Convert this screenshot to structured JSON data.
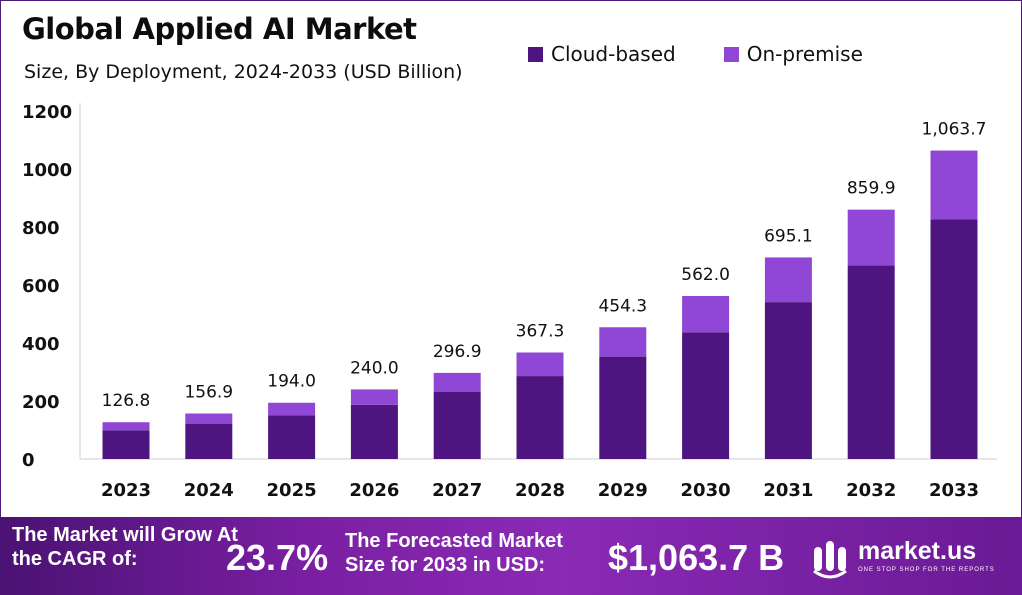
{
  "chart_data": {
    "type": "bar",
    "stacked": true,
    "title": "Global Applied AI Market",
    "subtitle": "Size, By Deployment, 2024-2033 (USD Billion)",
    "categories": [
      "2023",
      "2024",
      "2025",
      "2026",
      "2027",
      "2028",
      "2029",
      "2030",
      "2031",
      "2032",
      "2033"
    ],
    "series": [
      {
        "name": "Cloud-based",
        "color": "#4e1580",
        "values": [
          99,
          122,
          151,
          187,
          231,
          286,
          353,
          437,
          541,
          668,
          826
        ]
      },
      {
        "name": "On-premise",
        "color": "#9147d6",
        "values": [
          27.8,
          34.9,
          43.0,
          53.0,
          65.9,
          81.3,
          101.3,
          125.0,
          154.1,
          191.9,
          237.7
        ]
      }
    ],
    "totals": [
      126.8,
      156.9,
      194.0,
      240.0,
      296.9,
      367.3,
      454.3,
      562.0,
      695.1,
      859.9,
      1063.7
    ],
    "total_labels": [
      "126.8",
      "156.9",
      "194.0",
      "240.0",
      "296.9",
      "367.3",
      "454.3",
      "562.0",
      "695.1",
      "859.9",
      "1,063.7"
    ],
    "yticks": [
      0,
      200,
      400,
      600,
      800,
      1000,
      1200
    ],
    "ylim": [
      0,
      1200
    ],
    "legend_position": "top-right",
    "grid": false
  },
  "footer": {
    "cagr_label": "The Market will Grow At the CAGR of:",
    "cagr_value": "23.7%",
    "forecast_label": "The Forecasted Market Size for 2033 in USD:",
    "forecast_value": "$1,063.7 B",
    "brand_name": "market.us",
    "brand_tagline": "ONE STOP SHOP FOR THE REPORTS"
  }
}
